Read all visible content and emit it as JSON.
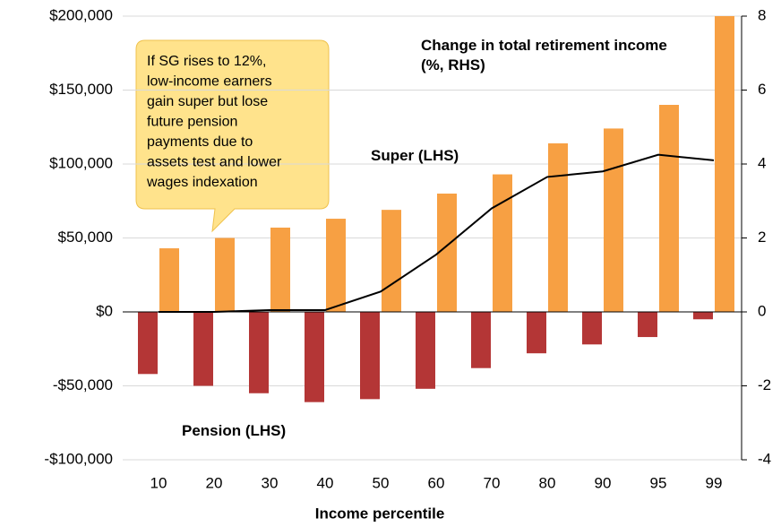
{
  "chart_data": {
    "type": "bar_line",
    "xlabel": "Income percentile",
    "categories": [
      "10",
      "20",
      "30",
      "40",
      "50",
      "60",
      "70",
      "80",
      "90",
      "95",
      "99"
    ],
    "series": [
      {
        "name": "Pension (LHS)",
        "color": "#b43636",
        "values": [
          -42000,
          -50000,
          -55000,
          -61000,
          -59000,
          -52000,
          -38000,
          -28000,
          -22000,
          -17000,
          -5000
        ]
      },
      {
        "name": "Super (LHS)",
        "color": "#f7a043",
        "values": [
          43000,
          50000,
          57000,
          63000,
          69000,
          80000,
          93000,
          114000,
          124000,
          140000,
          200000
        ]
      },
      {
        "name": "Change in total retirement income (%, RHS)",
        "color": "#000000",
        "type": "line",
        "axis": "y2",
        "values": [
          0,
          0,
          0.05,
          0.05,
          0.55,
          1.55,
          2.8,
          3.65,
          3.8,
          4.25,
          4.1
        ]
      }
    ],
    "ylim": [
      -100000,
      200000
    ],
    "yticks": [
      {
        "value": -100000,
        "label": "-$100,000"
      },
      {
        "value": -50000,
        "label": "-$50,000"
      },
      {
        "value": 0,
        "label": "$0"
      },
      {
        "value": 50000,
        "label": "$50,000"
      },
      {
        "value": 100000,
        "label": "$100,000"
      },
      {
        "value": 150000,
        "label": "$150,000"
      },
      {
        "value": 200000,
        "label": "$200,000"
      }
    ],
    "y2lim": [
      -4,
      8
    ],
    "y2ticks": [
      -4,
      -2,
      0,
      2,
      4,
      6,
      8
    ],
    "grid": true,
    "annotation": [
      "If SG rises to 12%,",
      "low-income earners",
      "gain super but lose",
      "future pension",
      "payments due to",
      "assets test and lower",
      "wages indexation"
    ]
  }
}
